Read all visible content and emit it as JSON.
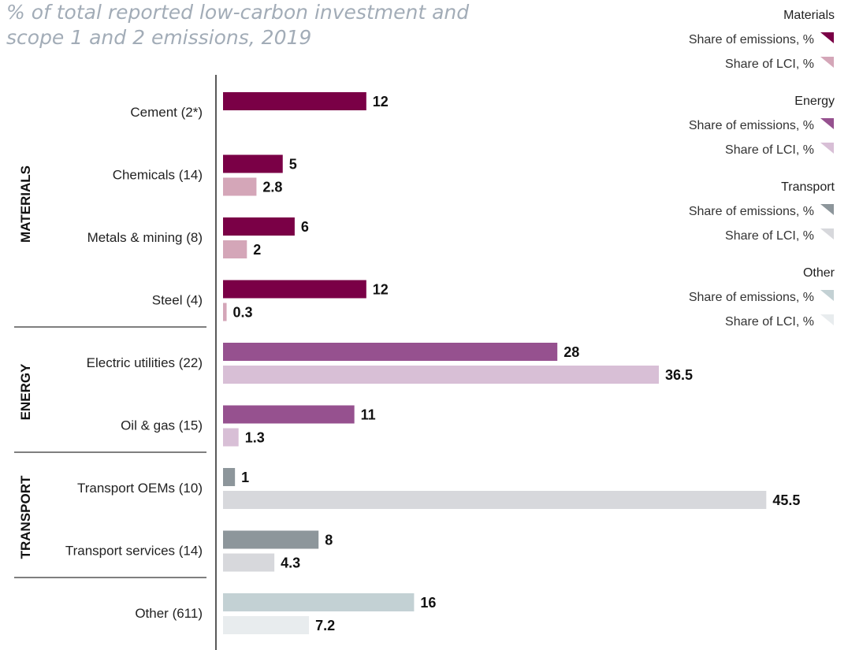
{
  "chart_data": {
    "type": "bar",
    "orientation": "horizontal",
    "title": "% of total reported low-carbon investment and\nscope 1 and 2 emissions, 2019",
    "xlim": [
      0,
      46
    ],
    "grid": false,
    "legend_placement": "top-right",
    "groups": [
      {
        "name": "MATERIALS",
        "categories": [
          "Cement (2*)",
          "Chemicals (14)",
          "Metals & mining (8)",
          "Steel (4)"
        ]
      },
      {
        "name": "ENERGY",
        "categories": [
          "Electric utilities (22)",
          "Oil & gas (15)"
        ]
      },
      {
        "name": "TRANSPORT",
        "categories": [
          "Transport OEMs (10)",
          "Transport services (14)"
        ]
      },
      {
        "name": "",
        "categories": [
          "Other (611)"
        ]
      }
    ],
    "categories": [
      "Cement (2*)",
      "Chemicals (14)",
      "Metals & mining (8)",
      "Steel (4)",
      "Electric utilities (22)",
      "Oil & gas (15)",
      "Transport OEMs (10)",
      "Transport services (14)",
      "Other (611)"
    ],
    "series": [
      {
        "name": "Share of emissions, %",
        "values": [
          12,
          5,
          6,
          12,
          28,
          11,
          1,
          8,
          16
        ],
        "labels": [
          "12",
          "5",
          "6",
          "12",
          "28",
          "11",
          "1",
          "8",
          "16"
        ]
      },
      {
        "name": "Share of LCI, %",
        "values": [
          null,
          2.8,
          2,
          0.3,
          36.5,
          1.3,
          45.5,
          4.3,
          7.2
        ],
        "labels": [
          "",
          "2.8",
          "2",
          "0.3",
          "36.5",
          "1.3",
          "45.5",
          "4.3",
          "7.2"
        ]
      }
    ],
    "category_colors": {
      "MATERIALS": {
        "emissions": "#7a0046",
        "lci": "#d4a6b8"
      },
      "ENERGY": {
        "emissions": "#96518f",
        "lci": "#d8bfd6"
      },
      "TRANSPORT": {
        "emissions": "#8d969b",
        "lci": "#d7d8dc"
      },
      "OTHER": {
        "emissions": "#c3d1d4",
        "lci": "#e8ecee"
      }
    },
    "legend": [
      {
        "title": "Materials",
        "items": [
          {
            "label": "Share of emissions, %",
            "color": "#7a0046"
          },
          {
            "label": "Share of LCI, %",
            "color": "#d4a6b8"
          }
        ]
      },
      {
        "title": "Energy",
        "items": [
          {
            "label": "Share of emissions, %",
            "color": "#96518f"
          },
          {
            "label": "Share of LCI, %",
            "color": "#d8bfd6"
          }
        ]
      },
      {
        "title": "Transport",
        "items": [
          {
            "label": "Share of emissions, %",
            "color": "#8d969b"
          },
          {
            "label": "Share of LCI, %",
            "color": "#d7d8dc"
          }
        ]
      },
      {
        "title": "Other",
        "items": [
          {
            "label": "Share of emissions, %",
            "color": "#c3d1d4"
          },
          {
            "label": "Share of LCI, %",
            "color": "#e8ecee"
          }
        ]
      }
    ]
  }
}
